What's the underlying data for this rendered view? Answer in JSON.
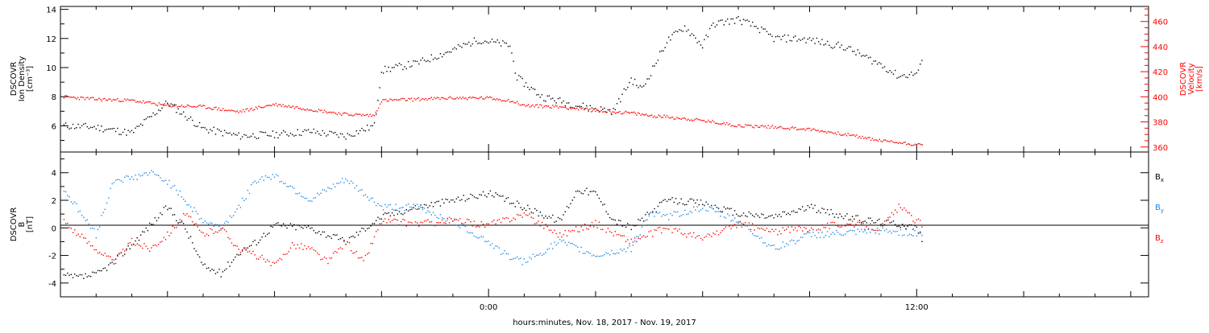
{
  "footer_label": "hours:minutes, Nov. 18, 2017 - Nov. 19, 2017",
  "colors": {
    "axis": "#000000",
    "density": "#000000",
    "velocity": "#ff0000",
    "bx": "#000000",
    "by": "#1e88e5",
    "bz": "#ff0000"
  },
  "chart_data": [
    {
      "type": "scatter",
      "panel": "top",
      "ylabel_left": [
        "DSCOVR",
        "Ion Density",
        "[cm⁻³]"
      ],
      "ylabel_right": [
        "DSCOVR",
        "Velocity",
        "[km/s]"
      ],
      "x_units": "hours relative to 0:00 Nov 19 2017",
      "xlim": [
        -12,
        18.5
      ],
      "ylim_left": [
        4.2,
        14.2
      ],
      "ylim_right": [
        356,
        472
      ],
      "left_ticks": [
        6,
        8,
        10,
        12,
        14
      ],
      "right_ticks": [
        360,
        380,
        400,
        420,
        440,
        460
      ],
      "series": [
        {
          "axis": "left",
          "x": [
            -11.9,
            -11.0,
            -10.0,
            -9.0,
            -8.0,
            -7.0,
            -6.0,
            -5.0,
            -4.0,
            -3.2,
            -3.0,
            -2.0,
            -1.0,
            -0.3,
            0.0,
            0.6,
            0.8,
            1.5,
            2.5,
            3.5,
            4.0,
            4.3,
            5.0,
            5.5,
            6.0,
            6.3,
            7.0,
            7.5,
            8.0,
            8.5,
            9.0,
            10.0,
            11.0,
            11.5,
            12.0,
            12.2
          ],
          "y": [
            6.0,
            5.9,
            5.5,
            7.6,
            5.8,
            5.3,
            5.4,
            5.6,
            5.3,
            6.0,
            9.8,
            10.3,
            11.2,
            11.9,
            11.8,
            11.5,
            9.3,
            8.0,
            7.4,
            7.0,
            9.2,
            8.5,
            11.8,
            12.8,
            11.5,
            13.0,
            13.3,
            12.8,
            12.0,
            12.0,
            11.9,
            11.4,
            10.2,
            9.4,
            9.6,
            10.5
          ]
        },
        {
          "axis": "right",
          "x": [
            -11.9,
            -11.0,
            -10.0,
            -9.0,
            -8.0,
            -7.0,
            -6.0,
            -5.0,
            -4.0,
            -3.2,
            -3.0,
            -2.0,
            -1.0,
            0.0,
            0.6,
            1.0,
            2.0,
            3.0,
            4.0,
            4.5,
            5.0,
            6.0,
            7.0,
            8.0,
            9.0,
            10.0,
            11.0,
            12.0,
            12.2
          ],
          "y": [
            400,
            398,
            397,
            393,
            392,
            388,
            394,
            390,
            386,
            385,
            397,
            398,
            399,
            399,
            397,
            393,
            392,
            389,
            387,
            385,
            384,
            381,
            377,
            376,
            374,
            370,
            365,
            362,
            361
          ]
        }
      ]
    },
    {
      "type": "scatter",
      "panel": "bottom",
      "ylabel_left": [
        "DSCOVR",
        "B",
        "[nT]"
      ],
      "x_units": "hours relative to 0:00 Nov 19 2017",
      "xlim": [
        -12,
        18.5
      ],
      "ylim": [
        -5,
        5.5
      ],
      "yticks": [
        -4,
        -2,
        0,
        2,
        4
      ],
      "xticks": [
        0,
        12
      ],
      "xtick_labels": [
        "0:00",
        "12:00"
      ],
      "series": [
        {
          "name": "Bx",
          "x": [
            -11.9,
            -11.5,
            -11.0,
            -10.5,
            -10.0,
            -9.0,
            -8.5,
            -8.0,
            -7.5,
            -7.0,
            -6.5,
            -6.0,
            -5.0,
            -4.0,
            -3.0,
            -2.0,
            -1.0,
            0.0,
            1.0,
            2.0,
            2.5,
            3.0,
            3.5,
            4.0,
            5.0,
            6.0,
            7.0,
            8.0,
            9.0,
            10.0,
            11.0,
            11.5,
            12.0,
            12.2
          ],
          "y": [
            -3.5,
            -3.6,
            -3.4,
            -2.5,
            -1.2,
            1.5,
            0.0,
            -2.8,
            -3.3,
            -1.8,
            -1.0,
            0.2,
            0.0,
            -1.0,
            0.8,
            1.5,
            2.0,
            2.5,
            1.5,
            0.5,
            2.8,
            2.5,
            0.6,
            0.0,
            2.0,
            1.8,
            1.0,
            0.8,
            1.5,
            0.8,
            0.4,
            0.3,
            0.0,
            -1.0
          ]
        },
        {
          "name": "By",
          "x": [
            -11.9,
            -11.0,
            -10.5,
            -10.0,
            -9.5,
            -9.0,
            -8.5,
            -8.0,
            -7.5,
            -7.0,
            -6.5,
            -6.0,
            -5.0,
            -4.0,
            -3.0,
            -2.0,
            -1.0,
            0.0,
            0.5,
            1.0,
            2.0,
            3.0,
            4.0,
            4.5,
            5.0,
            6.0,
            7.0,
            8.0,
            9.0,
            10.0,
            11.0,
            12.0,
            12.2
          ],
          "y": [
            2.8,
            -0.5,
            3.5,
            3.6,
            4.0,
            3.4,
            2.0,
            0.5,
            0.0,
            1.5,
            3.5,
            3.8,
            2.0,
            3.5,
            1.5,
            1.5,
            0.5,
            -1.0,
            -2.0,
            -2.5,
            -1.0,
            -2.0,
            -1.5,
            1.0,
            0.8,
            1.5,
            0.5,
            -1.5,
            -0.5,
            -0.4,
            -0.2,
            -0.4,
            -0.3
          ]
        },
        {
          "name": "Bz",
          "x": [
            -11.9,
            -11.5,
            -11.0,
            -10.5,
            -10.0,
            -9.5,
            -9.0,
            -8.5,
            -8.0,
            -7.5,
            -7.0,
            -6.5,
            -6.0,
            -5.5,
            -5.0,
            -4.5,
            -4.0,
            -3.5,
            -3.0,
            -2.0,
            -1.0,
            0.0,
            1.0,
            2.0,
            3.0,
            4.0,
            5.0,
            6.0,
            7.0,
            8.0,
            9.0,
            10.0,
            11.0,
            11.5,
            12.0,
            12.2
          ],
          "y": [
            0.5,
            -0.5,
            -1.5,
            -2.5,
            -1.0,
            -1.5,
            -0.5,
            1.0,
            -0.5,
            0.0,
            -1.5,
            -2.0,
            -2.8,
            -1.2,
            -1.5,
            -2.5,
            -1.0,
            -2.5,
            0.5,
            0.3,
            0.5,
            0.2,
            1.0,
            -0.5,
            0.3,
            -1.0,
            0.0,
            -0.8,
            0.3,
            -0.3,
            0.0,
            0.3,
            0.0,
            1.5,
            0.5,
            0.2
          ]
        }
      ]
    }
  ]
}
